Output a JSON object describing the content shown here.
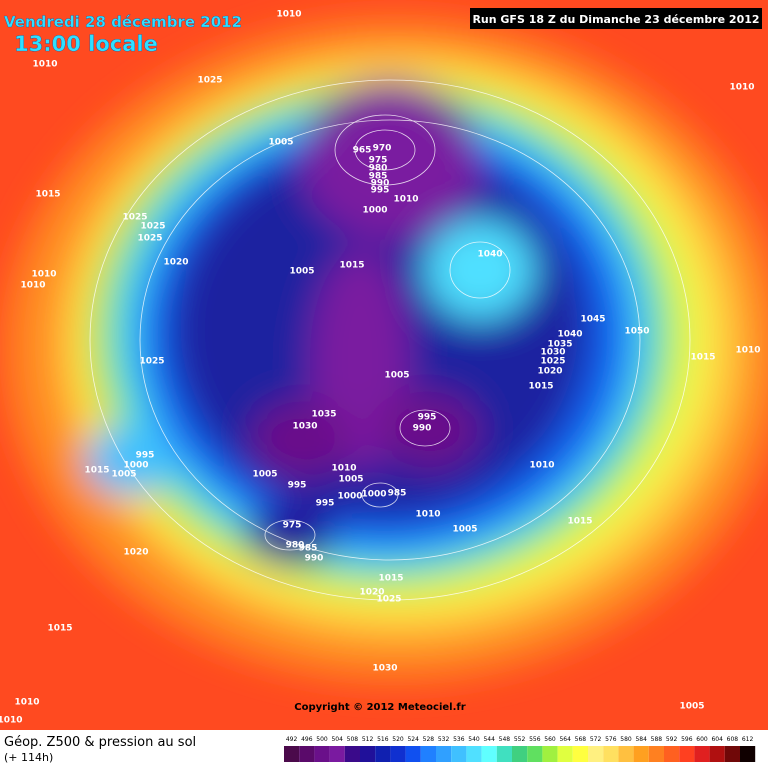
{
  "header": {
    "date": "Vendredi 28 décembre 2012",
    "time": "13:00 locale",
    "run": "Run GFS 18 Z du Dimanche 23 décembre 2012"
  },
  "copyright": "Copyright © 2012 Meteociel.fr",
  "footer": {
    "title": "Géop. Z500 & pression au sol",
    "lead": "(+ 114h)"
  },
  "legend": {
    "values": [
      492,
      496,
      500,
      504,
      508,
      512,
      516,
      520,
      524,
      528,
      532,
      536,
      540,
      544,
      548,
      552,
      556,
      560,
      564,
      568,
      572,
      576,
      580,
      584,
      588,
      592,
      596,
      600,
      604,
      608,
      612
    ],
    "colors": [
      "#4b0a4b",
      "#5a0a6a",
      "#6a108a",
      "#7a1aa0",
      "#3a0a8a",
      "#20109a",
      "#1020b0",
      "#1030d0",
      "#1050f0",
      "#2080ff",
      "#30a0ff",
      "#40c0ff",
      "#50e0ff",
      "#60ffff",
      "#40e0c0",
      "#40d080",
      "#60e060",
      "#a0f040",
      "#e0ff40",
      "#ffff40",
      "#fff080",
      "#ffe060",
      "#ffc040",
      "#ffa020",
      "#ff8020",
      "#ff6020",
      "#ff4020",
      "#e02020",
      "#b01010",
      "#700808",
      "#100000"
    ]
  },
  "isobar_labels": [
    1010,
    1010,
    1025,
    1010,
    1005,
    965,
    970,
    975,
    980,
    985,
    990,
    995,
    1010,
    1000,
    1015,
    1025,
    1025,
    1025,
    1020,
    1010,
    1010,
    1005,
    1015,
    1040,
    1045,
    1050,
    1040,
    1035,
    1030,
    1025,
    1020,
    1015,
    1015,
    1010,
    1025,
    1005,
    1035,
    1030,
    995,
    990,
    995,
    1000,
    1015,
    1005,
    1010,
    1005,
    1005,
    995,
    995,
    1000,
    1000,
    985,
    1010,
    1010,
    1005,
    975,
    980,
    985,
    990,
    1015,
    1020,
    1015,
    1020,
    1025,
    1015,
    1030,
    1010,
    1010,
    1005
  ]
}
